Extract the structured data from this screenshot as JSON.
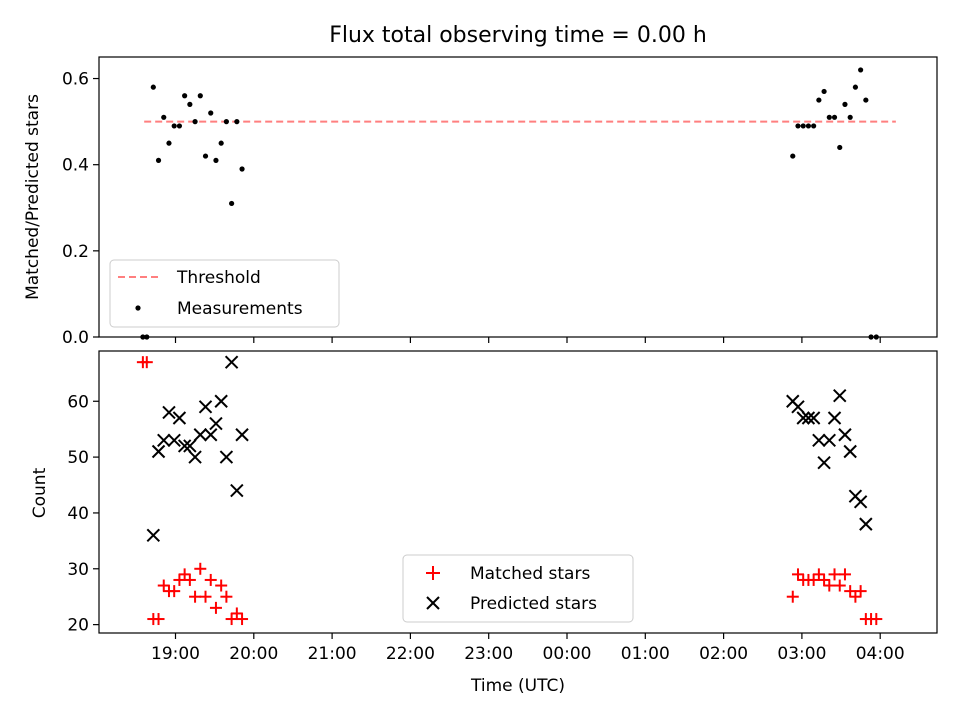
{
  "figure": {
    "title": "Flux total observing time = 0.00 h"
  },
  "chart_data": [
    {
      "type": "scatter",
      "panel": "top",
      "xlabel": "",
      "ylabel": "Matched/Predicted stars",
      "ylim": [
        0,
        0.65
      ],
      "yticks": [
        0.0,
        0.2,
        0.4,
        0.6
      ],
      "ytick_labels": [
        "0.0",
        "0.2",
        "0.4",
        "0.6"
      ],
      "threshold": {
        "name": "Threshold",
        "value": 0.5,
        "x": [
          "18:36",
          "04:12"
        ],
        "color": "#ff7f7f",
        "style": "dashed"
      },
      "series": [
        {
          "name": "Measurements",
          "color": "#000000",
          "marker": "dot",
          "points": [
            [
              "18:35",
              0.0
            ],
            [
              "18:38",
              0.0
            ],
            [
              "18:43",
              0.58
            ],
            [
              "18:47",
              0.41
            ],
            [
              "18:51",
              0.51
            ],
            [
              "18:55",
              0.45
            ],
            [
              "18:59",
              0.49
            ],
            [
              "19:03",
              0.49
            ],
            [
              "19:07",
              0.56
            ],
            [
              "19:11",
              0.54
            ],
            [
              "19:15",
              0.5
            ],
            [
              "19:19",
              0.56
            ],
            [
              "19:23",
              0.42
            ],
            [
              "19:27",
              0.52
            ],
            [
              "19:31",
              0.41
            ],
            [
              "19:35",
              0.45
            ],
            [
              "19:39",
              0.5
            ],
            [
              "19:43",
              0.31
            ],
            [
              "19:47",
              0.5
            ],
            [
              "19:51",
              0.39
            ],
            [
              "02:53",
              0.42
            ],
            [
              "02:57",
              0.49
            ],
            [
              "03:01",
              0.49
            ],
            [
              "03:05",
              0.49
            ],
            [
              "03:09",
              0.49
            ],
            [
              "03:13",
              0.55
            ],
            [
              "03:17",
              0.57
            ],
            [
              "03:21",
              0.51
            ],
            [
              "03:25",
              0.51
            ],
            [
              "03:29",
              0.44
            ],
            [
              "03:33",
              0.54
            ],
            [
              "03:37",
              0.51
            ],
            [
              "03:41",
              0.58
            ],
            [
              "03:45",
              0.62
            ],
            [
              "03:49",
              0.55
            ],
            [
              "03:53",
              0.0
            ],
            [
              "03:57",
              0.0
            ]
          ]
        }
      ],
      "legend": {
        "position": "lower-left",
        "entries": [
          "Threshold",
          "Measurements"
        ]
      }
    },
    {
      "type": "scatter",
      "panel": "bottom",
      "xlabel": "Time (UTC)",
      "ylabel": "Count",
      "ylim": [
        18.5,
        69
      ],
      "yticks": [
        20,
        30,
        40,
        50,
        60
      ],
      "ytick_labels": [
        "20",
        "30",
        "40",
        "50",
        "60"
      ],
      "xticks": [
        "19:00",
        "20:00",
        "21:00",
        "22:00",
        "23:00",
        "00:00",
        "01:00",
        "02:00",
        "03:00",
        "04:00"
      ],
      "series": [
        {
          "name": "Matched stars",
          "color": "#ff0000",
          "marker": "plus",
          "points": [
            [
              "18:35",
              67
            ],
            [
              "18:38",
              67
            ],
            [
              "18:43",
              21
            ],
            [
              "18:47",
              21
            ],
            [
              "18:51",
              27
            ],
            [
              "18:55",
              26
            ],
            [
              "18:59",
              26
            ],
            [
              "19:03",
              28
            ],
            [
              "19:07",
              29
            ],
            [
              "19:11",
              28
            ],
            [
              "19:15",
              25
            ],
            [
              "19:19",
              30
            ],
            [
              "19:23",
              25
            ],
            [
              "19:27",
              28
            ],
            [
              "19:31",
              23
            ],
            [
              "19:35",
              27
            ],
            [
              "19:39",
              25
            ],
            [
              "19:43",
              21
            ],
            [
              "19:47",
              22
            ],
            [
              "19:51",
              21
            ],
            [
              "02:53",
              25
            ],
            [
              "02:57",
              29
            ],
            [
              "03:01",
              28
            ],
            [
              "03:05",
              28
            ],
            [
              "03:09",
              28
            ],
            [
              "03:13",
              29
            ],
            [
              "03:17",
              28
            ],
            [
              "03:21",
              27
            ],
            [
              "03:25",
              29
            ],
            [
              "03:29",
              27
            ],
            [
              "03:33",
              29
            ],
            [
              "03:37",
              26
            ],
            [
              "03:41",
              25
            ],
            [
              "03:45",
              26
            ],
            [
              "03:49",
              21
            ],
            [
              "03:53",
              21
            ],
            [
              "03:57",
              21
            ]
          ]
        },
        {
          "name": "Predicted stars",
          "color": "#000000",
          "marker": "x",
          "points": [
            [
              "18:43",
              36
            ],
            [
              "18:47",
              51
            ],
            [
              "18:51",
              53
            ],
            [
              "18:55",
              58
            ],
            [
              "18:59",
              53
            ],
            [
              "19:03",
              57
            ],
            [
              "19:07",
              52
            ],
            [
              "19:11",
              52
            ],
            [
              "19:15",
              50
            ],
            [
              "19:19",
              54
            ],
            [
              "19:23",
              59
            ],
            [
              "19:27",
              54
            ],
            [
              "19:31",
              56
            ],
            [
              "19:35",
              60
            ],
            [
              "19:39",
              50
            ],
            [
              "19:43",
              67
            ],
            [
              "19:47",
              44
            ],
            [
              "19:51",
              54
            ],
            [
              "02:53",
              60
            ],
            [
              "02:57",
              59
            ],
            [
              "03:01",
              57
            ],
            [
              "03:05",
              57
            ],
            [
              "03:09",
              57
            ],
            [
              "03:13",
              53
            ],
            [
              "03:17",
              49
            ],
            [
              "03:21",
              53
            ],
            [
              "03:25",
              57
            ],
            [
              "03:29",
              61
            ],
            [
              "03:33",
              54
            ],
            [
              "03:37",
              51
            ],
            [
              "03:41",
              43
            ],
            [
              "03:45",
              42
            ],
            [
              "03:49",
              38
            ]
          ]
        }
      ],
      "legend": {
        "position": "lower-center",
        "entries": [
          "Matched stars",
          "Predicted stars"
        ]
      }
    }
  ]
}
